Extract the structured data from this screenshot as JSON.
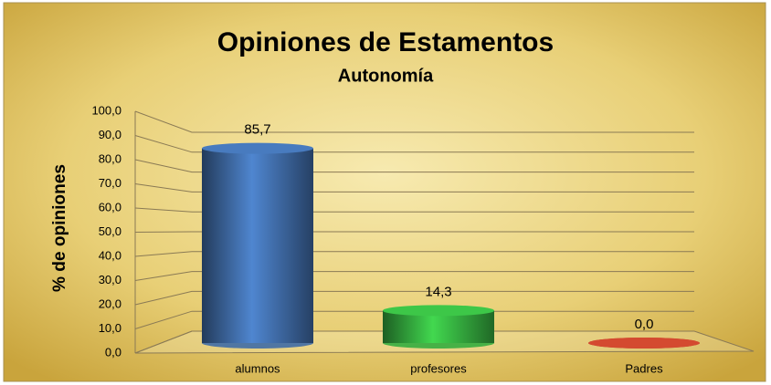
{
  "chart_data": {
    "type": "bar",
    "title": "Opiniones de Estamentos",
    "subtitle": "Autonomía",
    "y_label": "% de opiniones",
    "categories": [
      "alumnos",
      "profesores",
      "Padres"
    ],
    "values": [
      85.7,
      14.3,
      0.0
    ],
    "value_labels": [
      "85,7",
      "14,3",
      "0,0"
    ],
    "colors": [
      "#3f6ba6",
      "#35ad3f",
      "#b8402a"
    ],
    "ylim": [
      0,
      100
    ],
    "yticks": [
      {
        "value": 0,
        "label": "0,0"
      },
      {
        "value": 10,
        "label": "10,0"
      },
      {
        "value": 20,
        "label": "20,0"
      },
      {
        "value": 30,
        "label": "30,0"
      },
      {
        "value": 40,
        "label": "40,0"
      },
      {
        "value": 50,
        "label": "50,0"
      },
      {
        "value": 60,
        "label": "60,0"
      },
      {
        "value": 70,
        "label": "70,0"
      },
      {
        "value": 80,
        "label": "80,0"
      },
      {
        "value": 90,
        "label": "90,0"
      },
      {
        "value": 100,
        "label": "100,0"
      }
    ],
    "grid": true
  }
}
